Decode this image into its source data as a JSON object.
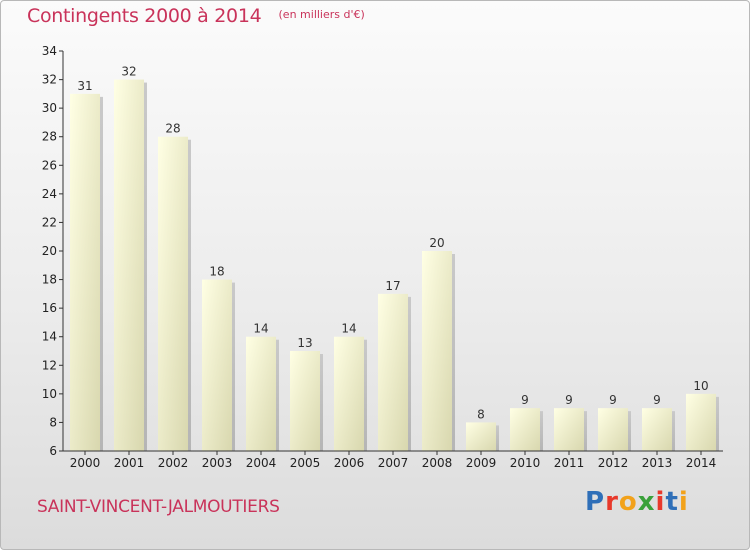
{
  "header": {
    "title": "Contingents 2000 à 2014",
    "subtitle": "(en milliers d'€)"
  },
  "footer": {
    "commune": "SAINT-VINCENT-JALMOUTIERS",
    "logo_letters": [
      "P",
      "r",
      "o",
      "x",
      "i",
      "t",
      "i"
    ],
    "logo_colors": [
      "#2f6fb8",
      "#e8392b",
      "#f2a21b",
      "#3aa13a",
      "#e8392b",
      "#2f6fb8",
      "#f2a21b"
    ]
  },
  "chart_data": {
    "type": "bar",
    "categories": [
      "2000",
      "2001",
      "2002",
      "2003",
      "2004",
      "2005",
      "2006",
      "2007",
      "2008",
      "2009",
      "2010",
      "2011",
      "2012",
      "2013",
      "2014"
    ],
    "values": [
      31,
      32,
      28,
      18,
      14,
      13,
      14,
      17,
      20,
      8,
      9,
      9,
      9,
      9,
      10
    ],
    "ylim": [
      6,
      34
    ],
    "yticks": [
      6,
      8,
      10,
      12,
      14,
      16,
      18,
      20,
      22,
      24,
      26,
      28,
      30,
      32,
      34
    ],
    "grid": false,
    "bar_color": "#fafad2"
  }
}
